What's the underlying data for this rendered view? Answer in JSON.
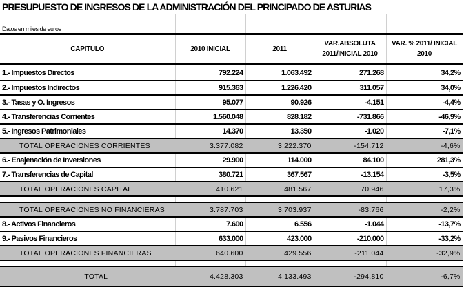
{
  "title": "PRESUPUESTO DE INGRESOS DE LA ADMINISTRACIÓN DEL PRINCIPADO DE ASTURIAS",
  "note": "Datos en miles de euros",
  "headers": [
    "CAPÍTULO",
    "2010  INICIAL",
    "2011",
    "VAR.ABSOLUTA 2011/INICIAL 2010",
    "VAR. % 2011/ INICIAL 2010"
  ],
  "rows": [
    {
      "type": "item",
      "cells": [
        "1.- Impuestos Directos",
        "792.224",
        "1.063.492",
        "271.268",
        "34,2%"
      ]
    },
    {
      "type": "item",
      "cells": [
        "2.- Impuestos Indirectos",
        "915.363",
        "1.226.420",
        "311.057",
        "34,0%"
      ]
    },
    {
      "type": "item",
      "cells": [
        "3.- Tasas y O. Ingresos",
        "95.077",
        "90.926",
        "-4.151",
        "-4,4%"
      ]
    },
    {
      "type": "item",
      "cells": [
        "4.- Transferencias Corrientes",
        "1.560.048",
        "828.182",
        "-731.866",
        "-46,9%"
      ]
    },
    {
      "type": "item",
      "cells": [
        "5.- Ingresos Patrimoniales",
        "14.370",
        "13.350",
        "-1.020",
        "-7,1%"
      ]
    },
    {
      "type": "total",
      "cells": [
        "TOTAL OPERACIONES CORRIENTES",
        "3.377.082",
        "3.222.370",
        "-154.712",
        "-4,6%"
      ]
    },
    {
      "type": "item",
      "cells": [
        "6.- Enajenación de Inversiones",
        "29.900",
        "114.000",
        "84.100",
        "281,3%"
      ]
    },
    {
      "type": "item",
      "cells": [
        "7.- Transferencias de Capital",
        "380.721",
        "367.567",
        "-13.154",
        "-3,5%"
      ]
    },
    {
      "type": "total",
      "cells": [
        "TOTAL OPERACIONES CAPITAL",
        "410.621",
        "481.567",
        "70.946",
        "17,3%"
      ]
    },
    {
      "type": "blank",
      "cells": [
        "",
        "",
        "",
        "",
        ""
      ]
    },
    {
      "type": "total",
      "cells": [
        "TOTAL OPERACIONES NO FINANCIERAS",
        "3.787.703",
        "3.703.937",
        "-83.766",
        "-2,2%"
      ]
    },
    {
      "type": "item",
      "cells": [
        "8.- Activos Financieros",
        "7.600",
        "6.556",
        "-1.044",
        "-13,7%"
      ]
    },
    {
      "type": "item",
      "cells": [
        "9.- Pasivos Financieros",
        "633.000",
        "423.000",
        "-210.000",
        "-33,2%"
      ]
    },
    {
      "type": "total",
      "cells": [
        "TOTAL OPERACIONES FINANCIERAS",
        "640.600",
        "429.556",
        "-211.044",
        "-32,9%"
      ]
    },
    {
      "type": "blank",
      "cells": [
        "",
        "",
        "",
        "",
        ""
      ]
    },
    {
      "type": "total big",
      "cells": [
        "TOTAL",
        "4.428.303",
        "4.133.493",
        "-294.810",
        "-6,7%"
      ]
    }
  ]
}
